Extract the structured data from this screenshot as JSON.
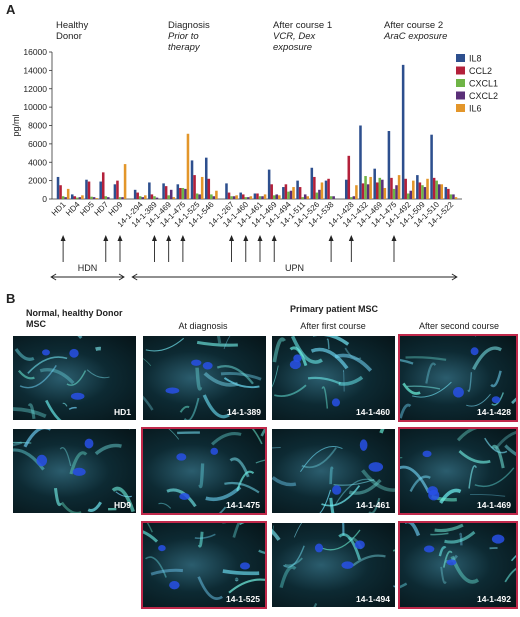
{
  "panelA": {
    "letter": "A",
    "groups": [
      {
        "l1": "Healthy",
        "l2": "Donor",
        "italic": false
      },
      {
        "l1": "Diagnosis",
        "l2": "Prior to",
        "l3": "therapy",
        "italic": true
      },
      {
        "l1": "After course 1",
        "l2": "VCR, Dex",
        "l3": "exposure",
        "italic": true
      },
      {
        "l1": "After course 2",
        "l2": "AraC exposure",
        "italic": true
      }
    ],
    "hdn": "HDN",
    "upn": "UPN"
  },
  "chart_data": {
    "type": "bar",
    "ylabel": "pg/ml",
    "ylim": [
      0,
      16000
    ],
    "yticks": [
      0,
      2000,
      4000,
      6000,
      8000,
      10000,
      12000,
      14000,
      16000
    ],
    "series_names": [
      "IL8",
      "CCL2",
      "CXCL1",
      "CXCL2",
      "IL6"
    ],
    "colors": [
      "#2d4f8e",
      "#b3203a",
      "#6fb446",
      "#5a2f78",
      "#e3962a"
    ],
    "categories": [
      "HD1",
      "HD4",
      "HD5",
      "HD7",
      "HD9",
      "14-1-294",
      "14-1-389",
      "14-1-469",
      "14-1-475",
      "14-1-525",
      "14-1-546",
      "14-1-267",
      "14-1-460",
      "14-1-461",
      "14-1-469",
      "14-1-494",
      "14-1-511",
      "14-1-526",
      "14-1-538",
      "14-1-428",
      "14-1-432",
      "14-1-469",
      "14-1-475",
      "14-1-492",
      "14-1-509",
      "14-1-510",
      "14-1-522"
    ],
    "values": [
      [
        2400,
        1500,
        300,
        200,
        1100
      ],
      [
        500,
        300,
        150,
        200,
        400
      ],
      [
        2100,
        1900,
        250,
        200,
        100
      ],
      [
        1900,
        2900,
        300,
        200,
        0
      ],
      [
        1600,
        2000,
        200,
        200,
        3800
      ],
      [
        1000,
        700,
        300,
        200,
        400
      ],
      [
        1800,
        500,
        300,
        150,
        0
      ],
      [
        1700,
        1400,
        400,
        1000,
        200
      ],
      [
        1600,
        1200,
        1200,
        1100,
        7100
      ],
      [
        4200,
        2600,
        600,
        500,
        2400
      ],
      [
        4500,
        2200,
        500,
        300,
        900
      ],
      [
        1700,
        700,
        300,
        300,
        400
      ],
      [
        700,
        500,
        200,
        200,
        300
      ],
      [
        600,
        600,
        300,
        300,
        500
      ],
      [
        3200,
        1600,
        400,
        500,
        400
      ],
      [
        1300,
        1600,
        800,
        900,
        1300
      ],
      [
        2000,
        1300,
        200,
        500,
        300
      ],
      [
        3400,
        2400,
        700,
        1000,
        1800
      ],
      [
        2000,
        2200,
        300,
        300,
        0
      ],
      [
        2100,
        4700,
        200,
        300,
        1500
      ],
      [
        8000,
        1700,
        2500,
        1600,
        2400
      ],
      [
        3300,
        1800,
        2300,
        2100,
        1200
      ],
      [
        7400,
        2300,
        1100,
        1500,
        2600
      ],
      [
        14600,
        2200,
        600,
        900,
        2000
      ],
      [
        2600,
        1800,
        1500,
        1300,
        2200
      ],
      [
        7000,
        2300,
        2000,
        1600,
        1600
      ],
      [
        1300,
        1100,
        500,
        500,
        200
      ]
    ]
  },
  "arrows": [
    "HD1",
    "HD7",
    "HD9",
    "14-1-389",
    "14-1-469",
    "14-1-475",
    "14-1-267",
    "14-1-460",
    "14-1-461",
    "14-1-538",
    "14-1-428",
    "14-1-469",
    "14-1-475"
  ],
  "panelB": {
    "letter": "B",
    "title_left": "Normal, healthy Donor MSC",
    "title_right": "Primary patient MSC",
    "col_titles": [
      "At diagnosis",
      "After first course",
      "After second course"
    ],
    "images": {
      "hd1": "HD1",
      "hd9": "HD9",
      "d1": "14-1-389",
      "d2": "14-1-475",
      "d3": "14-1-525",
      "f1": "14-1-460",
      "f2": "14-1-461",
      "f3": "14-1-494",
      "s1": "14-1-428",
      "s2": "14-1-469",
      "s3": "14-1-492"
    }
  }
}
